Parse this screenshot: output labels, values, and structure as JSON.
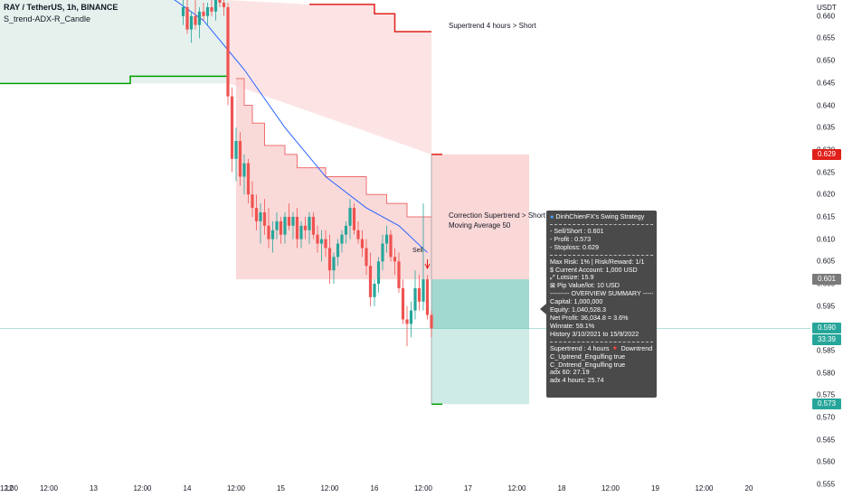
{
  "header": {
    "symbol_line": "RAY / TetherUS, 1h, BINANCE",
    "indicator_line": "S_trend-ADX-R_Candle"
  },
  "currency": "USDT",
  "colors": {
    "up": "#26a69a",
    "down": "#ef5350",
    "supertrend_up": "#00a000",
    "supertrend_down": "#e0201a",
    "ma_line": "#2962ff",
    "short_zone": "#f8c8c8",
    "target_zone": "#b9e2dc"
  },
  "chart_data": {
    "type": "candlestick",
    "ylabel": "USDT",
    "ylim": [
      0.5522,
      0.6636
    ],
    "y_ticks": [
      0.555,
      0.56,
      0.565,
      0.57,
      0.575,
      0.58,
      0.585,
      0.59,
      0.595,
      0.6,
      0.605,
      0.61,
      0.615,
      0.62,
      0.625,
      0.63,
      0.635,
      0.64,
      0.645,
      0.65,
      0.655,
      0.66
    ],
    "x_ticks": [
      {
        "label": "12:00",
        "bar": -61
      },
      {
        "label": "12",
        "bar": -50
      },
      {
        "label": "12:00",
        "bar": -38
      },
      {
        "label": "13",
        "bar": -27
      },
      {
        "label": "12:00",
        "bar": -15
      },
      {
        "label": "14",
        "bar": -4
      },
      {
        "label": "12:00",
        "bar": 8
      },
      {
        "label": "15",
        "bar": 19
      },
      {
        "label": "12:00",
        "bar": 31
      },
      {
        "label": "16",
        "bar": 42
      },
      {
        "label": "12:00",
        "bar": 54
      },
      {
        "label": "17",
        "bar": 65
      },
      {
        "label": "12:00",
        "bar": 77
      },
      {
        "label": "18",
        "bar": 88
      },
      {
        "label": "12:00",
        "bar": 100
      },
      {
        "label": "19",
        "bar": 111
      },
      {
        "label": "12:00",
        "bar": 123
      },
      {
        "label": "20",
        "bar": 134
      }
    ],
    "candles": [
      {
        "o": 0.66,
        "h": 0.665,
        "l": 0.658,
        "c": 0.662
      },
      {
        "o": 0.662,
        "h": 0.664,
        "l": 0.656,
        "c": 0.657
      },
      {
        "o": 0.657,
        "h": 0.661,
        "l": 0.654,
        "c": 0.66
      },
      {
        "o": 0.66,
        "h": 0.664,
        "l": 0.657,
        "c": 0.658
      },
      {
        "o": 0.658,
        "h": 0.662,
        "l": 0.655,
        "c": 0.661
      },
      {
        "o": 0.661,
        "h": 0.663,
        "l": 0.659,
        "c": 0.66
      },
      {
        "o": 0.66,
        "h": 0.663,
        "l": 0.658,
        "c": 0.662
      },
      {
        "o": 0.662,
        "h": 0.664,
        "l": 0.66,
        "c": 0.661
      },
      {
        "o": 0.661,
        "h": 0.665,
        "l": 0.659,
        "c": 0.664
      },
      {
        "o": 0.664,
        "h": 0.665,
        "l": 0.662,
        "c": 0.663
      },
      {
        "o": 0.663,
        "h": 0.665,
        "l": 0.66,
        "c": 0.662
      },
      {
        "o": 0.662,
        "h": 0.663,
        "l": 0.64,
        "c": 0.642
      },
      {
        "o": 0.642,
        "h": 0.644,
        "l": 0.625,
        "c": 0.628
      },
      {
        "o": 0.628,
        "h": 0.635,
        "l": 0.623,
        "c": 0.632
      },
      {
        "o": 0.632,
        "h": 0.634,
        "l": 0.622,
        "c": 0.624
      },
      {
        "o": 0.624,
        "h": 0.629,
        "l": 0.62,
        "c": 0.627
      },
      {
        "o": 0.627,
        "h": 0.628,
        "l": 0.618,
        "c": 0.62
      },
      {
        "o": 0.62,
        "h": 0.623,
        "l": 0.615,
        "c": 0.617
      },
      {
        "o": 0.617,
        "h": 0.62,
        "l": 0.612,
        "c": 0.614
      },
      {
        "o": 0.614,
        "h": 0.618,
        "l": 0.609,
        "c": 0.616
      },
      {
        "o": 0.616,
        "h": 0.619,
        "l": 0.611,
        "c": 0.613
      },
      {
        "o": 0.613,
        "h": 0.617,
        "l": 0.608,
        "c": 0.61
      },
      {
        "o": 0.61,
        "h": 0.614,
        "l": 0.607,
        "c": 0.612
      },
      {
        "o": 0.612,
        "h": 0.616,
        "l": 0.61,
        "c": 0.614
      },
      {
        "o": 0.614,
        "h": 0.615,
        "l": 0.609,
        "c": 0.611
      },
      {
        "o": 0.611,
        "h": 0.616,
        "l": 0.609,
        "c": 0.615
      },
      {
        "o": 0.615,
        "h": 0.618,
        "l": 0.612,
        "c": 0.613
      },
      {
        "o": 0.613,
        "h": 0.616,
        "l": 0.61,
        "c": 0.615
      },
      {
        "o": 0.615,
        "h": 0.617,
        "l": 0.608,
        "c": 0.61
      },
      {
        "o": 0.61,
        "h": 0.614,
        "l": 0.608,
        "c": 0.613
      },
      {
        "o": 0.613,
        "h": 0.615,
        "l": 0.61,
        "c": 0.612
      },
      {
        "o": 0.612,
        "h": 0.616,
        "l": 0.609,
        "c": 0.615
      },
      {
        "o": 0.615,
        "h": 0.616,
        "l": 0.61,
        "c": 0.611
      },
      {
        "o": 0.611,
        "h": 0.613,
        "l": 0.607,
        "c": 0.609
      },
      {
        "o": 0.609,
        "h": 0.612,
        "l": 0.605,
        "c": 0.61
      },
      {
        "o": 0.61,
        "h": 0.612,
        "l": 0.606,
        "c": 0.608
      },
      {
        "o": 0.608,
        "h": 0.611,
        "l": 0.6,
        "c": 0.603
      },
      {
        "o": 0.603,
        "h": 0.607,
        "l": 0.6,
        "c": 0.606
      },
      {
        "o": 0.606,
        "h": 0.61,
        "l": 0.604,
        "c": 0.609
      },
      {
        "o": 0.609,
        "h": 0.612,
        "l": 0.607,
        "c": 0.611
      },
      {
        "o": 0.611,
        "h": 0.614,
        "l": 0.609,
        "c": 0.613
      },
      {
        "o": 0.613,
        "h": 0.619,
        "l": 0.61,
        "c": 0.617
      },
      {
        "o": 0.617,
        "h": 0.618,
        "l": 0.611,
        "c": 0.612
      },
      {
        "o": 0.612,
        "h": 0.614,
        "l": 0.609,
        "c": 0.61
      },
      {
        "o": 0.61,
        "h": 0.612,
        "l": 0.606,
        "c": 0.608
      },
      {
        "o": 0.608,
        "h": 0.61,
        "l": 0.602,
        "c": 0.604
      },
      {
        "o": 0.604,
        "h": 0.607,
        "l": 0.595,
        "c": 0.597
      },
      {
        "o": 0.597,
        "h": 0.601,
        "l": 0.595,
        "c": 0.6
      },
      {
        "o": 0.6,
        "h": 0.606,
        "l": 0.598,
        "c": 0.605
      },
      {
        "o": 0.605,
        "h": 0.611,
        "l": 0.603,
        "c": 0.609
      },
      {
        "o": 0.609,
        "h": 0.613,
        "l": 0.607,
        "c": 0.611
      },
      {
        "o": 0.611,
        "h": 0.612,
        "l": 0.605,
        "c": 0.606
      },
      {
        "o": 0.606,
        "h": 0.608,
        "l": 0.602,
        "c": 0.605
      },
      {
        "o": 0.605,
        "h": 0.607,
        "l": 0.598,
        "c": 0.599
      },
      {
        "o": 0.599,
        "h": 0.601,
        "l": 0.591,
        "c": 0.592
      },
      {
        "o": 0.592,
        "h": 0.595,
        "l": 0.586,
        "c": 0.591
      },
      {
        "o": 0.591,
        "h": 0.596,
        "l": 0.588,
        "c": 0.594
      },
      {
        "o": 0.594,
        "h": 0.603,
        "l": 0.592,
        "c": 0.599
      },
      {
        "o": 0.599,
        "h": 0.602,
        "l": 0.594,
        "c": 0.596
      },
      {
        "o": 0.596,
        "h": 0.618,
        "l": 0.594,
        "c": 0.601
      },
      {
        "o": 0.601,
        "h": 0.602,
        "l": 0.592,
        "c": 0.593
      },
      {
        "o": 0.593,
        "h": 0.594,
        "l": 0.588,
        "c": 0.59
      }
    ],
    "candle_start_bar": -5,
    "moving_average_50": [
      {
        "bar": -10,
        "v": 0.6655
      },
      {
        "bar": 0,
        "v": 0.659
      },
      {
        "bar": 10,
        "v": 0.648
      },
      {
        "bar": 20,
        "v": 0.635
      },
      {
        "bar": 30,
        "v": 0.624
      },
      {
        "bar": 40,
        "v": 0.617
      },
      {
        "bar": 48,
        "v": 0.613
      },
      {
        "bar": 55,
        "v": 0.607
      }
    ],
    "supertrend_4h_up": [
      {
        "bar": -62,
        "v": 0.6449
      },
      {
        "bar": -18,
        "v": 0.6449
      },
      {
        "bar": -18,
        "v": 0.6465
      },
      {
        "bar": 6,
        "v": 0.6465
      }
    ],
    "supertrend_4h_down": [
      {
        "bar": 26,
        "v": 0.6626
      },
      {
        "bar": 42,
        "v": 0.6626
      },
      {
        "bar": 42,
        "v": 0.6605
      },
      {
        "bar": 47,
        "v": 0.6605
      },
      {
        "bar": 47,
        "v": 0.6565
      },
      {
        "bar": 56,
        "v": 0.6565
      }
    ],
    "correction_supertrend": [
      {
        "bar": 8,
        "v": 0.646
      },
      {
        "bar": 10,
        "v": 0.646
      },
      {
        "bar": 10,
        "v": 0.64
      },
      {
        "bar": 12,
        "v": 0.64
      },
      {
        "bar": 12,
        "v": 0.636
      },
      {
        "bar": 15,
        "v": 0.636
      },
      {
        "bar": 15,
        "v": 0.631
      },
      {
        "bar": 20,
        "v": 0.631
      },
      {
        "bar": 20,
        "v": 0.629
      },
      {
        "bar": 23,
        "v": 0.629
      },
      {
        "bar": 23,
        "v": 0.626
      },
      {
        "bar": 30,
        "v": 0.626
      },
      {
        "bar": 30,
        "v": 0.624
      },
      {
        "bar": 40,
        "v": 0.624
      },
      {
        "bar": 40,
        "v": 0.62
      },
      {
        "bar": 45,
        "v": 0.62
      },
      {
        "bar": 45,
        "v": 0.618
      },
      {
        "bar": 50,
        "v": 0.618
      },
      {
        "bar": 50,
        "v": 0.615
      },
      {
        "bar": 56,
        "v": 0.615
      }
    ],
    "trade": {
      "entry_bar": 56,
      "end_bar": 80,
      "entry": 0.601,
      "stoploss": 0.629,
      "target": 0.573
    },
    "current_price": 0.59,
    "annotations": [
      {
        "text": "Supertrend 4 hours > Short",
        "bar": 58,
        "v": 0.6575
      },
      {
        "text": "Correction Supertrend  > Short",
        "bar": 58,
        "v": 0.615
      },
      {
        "text": "Moving Average 50",
        "bar": 58,
        "v": 0.6128
      }
    ],
    "sell_signal": {
      "label": "Sell",
      "bar": 55
    }
  },
  "price_tags": [
    {
      "text": "0.629",
      "bg": "#e0201a"
    },
    {
      "text": "0.601",
      "bg": "#7a7a7a"
    },
    {
      "text": "0.590",
      "bg": "#26a69a"
    },
    {
      "text": "33:39",
      "bg": "#26a69a"
    },
    {
      "text": "0.573",
      "bg": "#26a69a"
    }
  ],
  "info_box": {
    "title": "DinhChienFX's Swing Strategy",
    "lines_a": [
      "- Sell/Short   : 0.601",
      "- Profit  : 0.573",
      "- Stoploss: 0.629"
    ],
    "lines_b": [
      "Max Risk: 1% | Risk/Reward: 1/1",
      "$ Current Account: 1,000 USD",
      "⤢ Lotsize: 15.9",
      "⊠ Pip Value/lot: 10 USD",
      "--------- OVERVIEW SUMMARY ---------",
      "Capital: 1,000,000",
      "Equity: 1,040,528.3",
      "Net Profit: 36,034.8 = 3.6%",
      "Winrate: 59.1%",
      "History 3/10/2021 to 15/9/2022"
    ],
    "lines_c": [
      "Supertrend : 4 hours  🔻 Downtrend",
      "C_Uptrend_Engulfing true",
      "C_Dntrend_Engulfing true",
      "adx 60: 27.19",
      "adx 4 hours: 25.74"
    ]
  }
}
